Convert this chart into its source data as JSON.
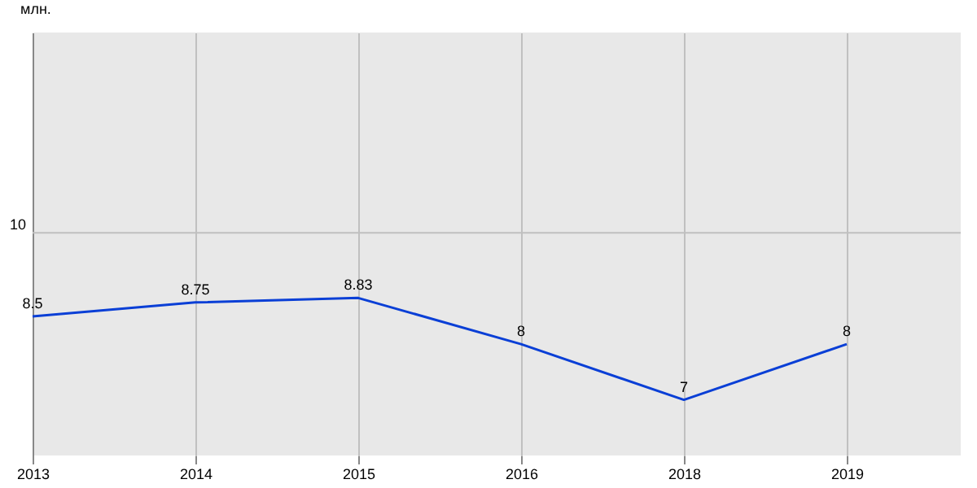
{
  "chart_data": {
    "type": "line",
    "ylabel": "млн.",
    "categories": [
      "2013",
      "2014",
      "2015",
      "2016",
      "2018",
      "2019"
    ],
    "series": [
      {
        "color": "#0a3fd6",
        "values": [
          8.5,
          8.75,
          8.83,
          8,
          7,
          8
        ]
      }
    ],
    "ylim": [
      6,
      13.6
    ],
    "ref_lines": [
      {
        "axis": "y",
        "value": 10,
        "label": "10",
        "color": "#c0c0c0"
      }
    ],
    "grid": "x",
    "data_labels": true
  }
}
